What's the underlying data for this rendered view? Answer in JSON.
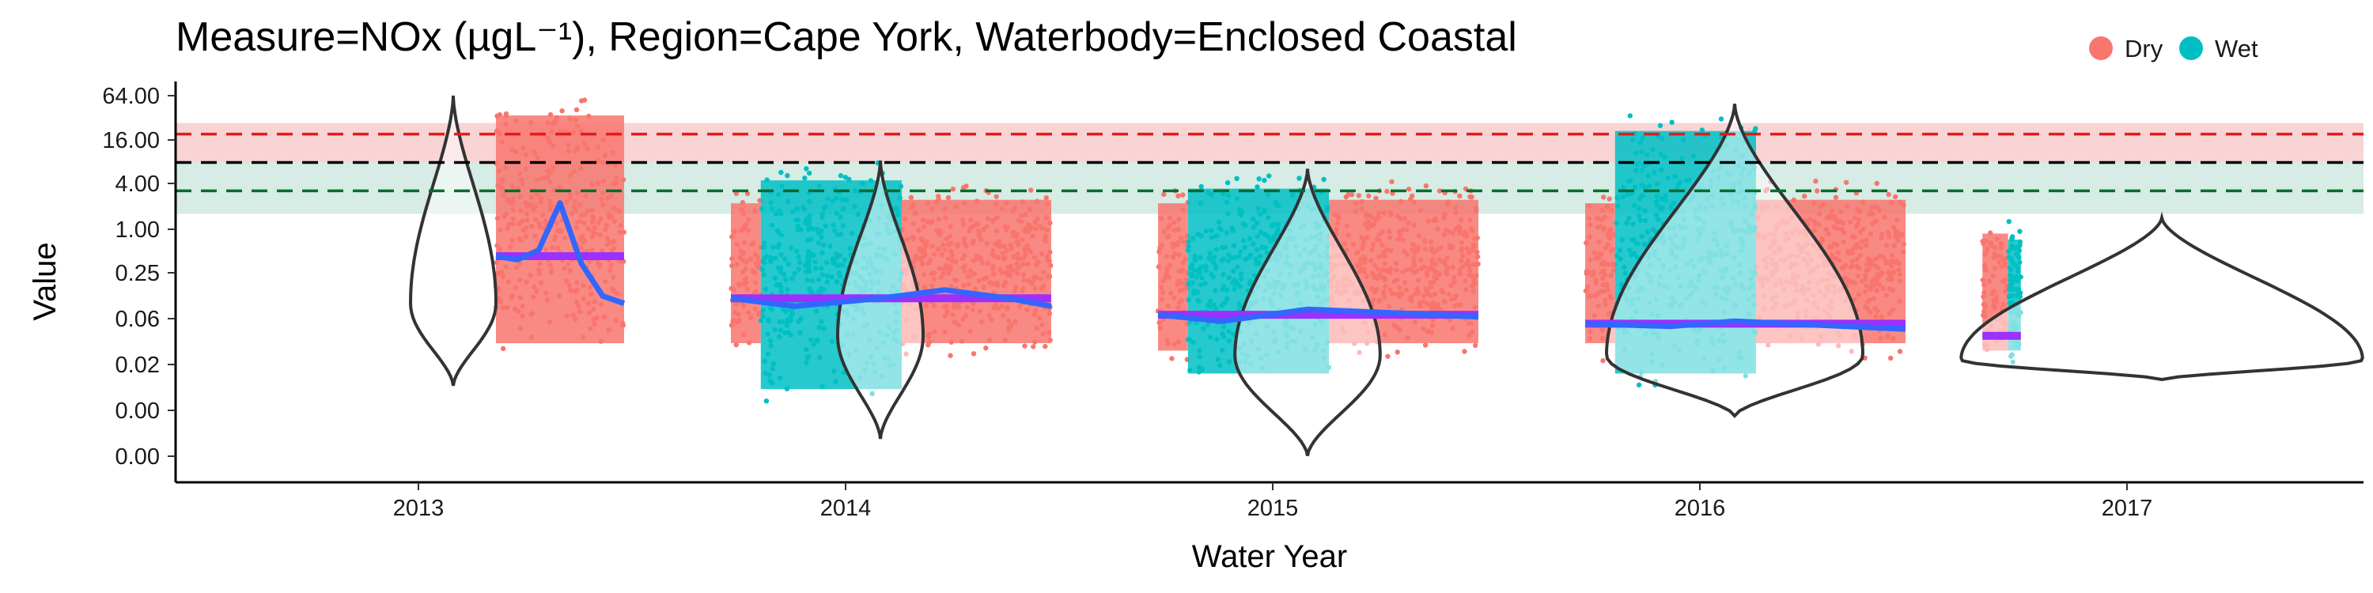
{
  "chart_data": {
    "type": "scatter",
    "title": "Measure=NOx (µgL⁻¹), Region=Cape York, Waterbody=Enclosed Coastal",
    "xlabel": "Water Year",
    "ylabel": "Value",
    "y_scale": "log",
    "x_ticks": [
      "2013",
      "2014",
      "2015",
      "2016",
      "2017"
    ],
    "y_ticks": [
      "0.00",
      "0.00",
      "0.02",
      "0.06",
      "0.25",
      "1.00",
      "4.00",
      "16.00",
      "64.00"
    ],
    "legend": {
      "position": "top-right",
      "entries": [
        {
          "label": "Dry",
          "color": "#F8766D"
        },
        {
          "label": "Wet",
          "color": "#00BFC4"
        }
      ]
    },
    "reference_lines": [
      {
        "value": 20,
        "color": "#E41A1C",
        "style": "dashed"
      },
      {
        "value": 8.5,
        "color": "#000000",
        "style": "dashed"
      },
      {
        "value": 3.6,
        "color": "#006D2C",
        "style": "dashed"
      }
    ],
    "reference_bands": [
      {
        "from": 8.5,
        "to": 28,
        "color": "#F8D4D4"
      },
      {
        "from": 1.8,
        "to": 8.5,
        "color": "#D6ECE4"
      }
    ],
    "series": [
      {
        "name": "Dry",
        "color": "#F8766D",
        "ranges": [
          {
            "year_start": 2013.1,
            "year_end": 2013.4,
            "min": 0.02,
            "max": 64
          },
          {
            "year_start": 2013.65,
            "year_end": 2013.72,
            "min": 0.02,
            "max": 4.5
          },
          {
            "year_start": 2014.05,
            "year_end": 2014.4,
            "min": 0.02,
            "max": 5
          },
          {
            "year_start": 2014.65,
            "year_end": 2014.72,
            "min": 0.016,
            "max": 4.5
          },
          {
            "year_start": 2015.05,
            "year_end": 2015.4,
            "min": 0.02,
            "max": 5
          },
          {
            "year_start": 2015.65,
            "year_end": 2015.72,
            "min": 0.02,
            "max": 4.5
          },
          {
            "year_start": 2016.05,
            "year_end": 2016.4,
            "min": 0.02,
            "max": 5
          },
          {
            "year_start": 2016.58,
            "year_end": 2016.64,
            "min": 0.016,
            "max": 1.8
          }
        ]
      },
      {
        "name": "Wet",
        "color": "#00BFC4",
        "ranges": [
          {
            "year_start": 2013.72,
            "year_end": 2014.05,
            "min": 0.005,
            "max": 9
          },
          {
            "year_start": 2014.72,
            "year_end": 2015.05,
            "min": 0.008,
            "max": 7
          },
          {
            "year_start": 2015.72,
            "year_end": 2016.05,
            "min": 0.008,
            "max": 40
          },
          {
            "year_start": 2016.64,
            "year_end": 2016.67,
            "min": 0.016,
            "max": 1.5
          }
        ]
      }
    ],
    "annual_means": [
      {
        "year_start": 2013.1,
        "year_end": 2013.4,
        "value": 0.5
      },
      {
        "year_start": 2013.65,
        "year_end": 2014.4,
        "value": 0.14
      },
      {
        "year_start": 2014.65,
        "year_end": 2015.4,
        "value": 0.085
      },
      {
        "year_start": 2015.65,
        "year_end": 2016.4,
        "value": 0.065
      },
      {
        "year_start": 2016.58,
        "year_end": 2016.67,
        "value": 0.045
      }
    ],
    "smoother": [
      {
        "x": [
          2013.1,
          2013.15,
          2013.2,
          2013.25,
          2013.3,
          2013.35,
          2013.4
        ],
        "y": [
          0.5,
          0.45,
          0.6,
          2.5,
          0.4,
          0.15,
          0.12
        ]
      },
      {
        "x": [
          2013.65,
          2013.8,
          2014.0,
          2014.15,
          2014.3,
          2014.4
        ],
        "y": [
          0.14,
          0.11,
          0.14,
          0.18,
          0.14,
          0.11
        ]
      },
      {
        "x": [
          2014.65,
          2014.8,
          2015.0,
          2015.2,
          2015.4
        ],
        "y": [
          0.085,
          0.07,
          0.1,
          0.09,
          0.08
        ]
      },
      {
        "x": [
          2015.65,
          2015.85,
          2016.0,
          2016.2,
          2016.4
        ],
        "y": [
          0.065,
          0.06,
          0.07,
          0.062,
          0.055
        ]
      }
    ],
    "violins": [
      {
        "year": 2013,
        "min": 0.01,
        "max": 64,
        "peak": 0.12,
        "half_width": 0.1
      },
      {
        "year": 2014,
        "min": 0.002,
        "max": 9,
        "peak": 0.045,
        "half_width": 0.1
      },
      {
        "year": 2015,
        "min": 0.0012,
        "max": 7,
        "peak": 0.025,
        "half_width": 0.17
      },
      {
        "year": 2016,
        "min": 0.004,
        "max": 50,
        "peak": 0.025,
        "half_width": 0.3
      },
      {
        "year": 2017,
        "min": 0.012,
        "max": 1.6,
        "peak": 0.022,
        "half_width": 0.47
      }
    ]
  }
}
